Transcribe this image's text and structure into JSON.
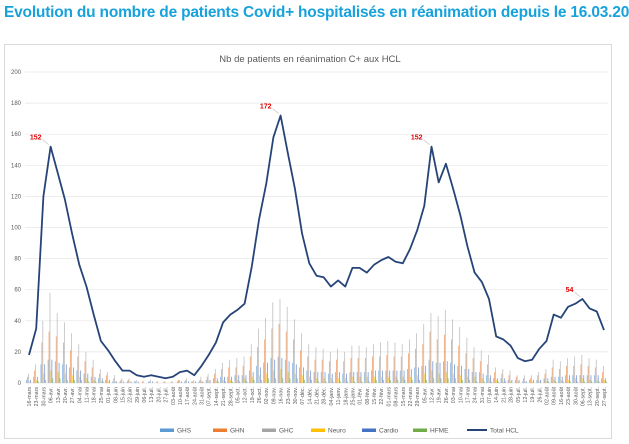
{
  "page_title": "Evolution du nombre de patients Covid+ hospitalisés en réanimation depuis le 16.03.20",
  "chart_data": {
    "type": "bar+line",
    "title": "Nb de patients en réanimation C+ aux HCL",
    "xlabel": "",
    "ylabel": "",
    "ylim": [
      0,
      200
    ],
    "yticks": [
      0,
      20,
      40,
      60,
      80,
      100,
      120,
      140,
      160,
      180,
      200
    ],
    "grid": true,
    "legend_position": "bottom",
    "categories": [
      "16-mars",
      "23-mars",
      "30-mars",
      "06-avr.",
      "13-avr.",
      "20-avr.",
      "27-avr.",
      "04-mai",
      "11-mai",
      "18-mai",
      "25-mai",
      "01-juin",
      "08-juin",
      "15-juin",
      "22-juin",
      "29-juin",
      "06-juil.",
      "13-juil.",
      "20-juil.",
      "27-juil.",
      "03-août",
      "10-août",
      "17-août",
      "24-août",
      "31-août",
      "07-sept.",
      "14-sept.",
      "21-sept.",
      "28-sept.",
      "05-oct.",
      "12-oct.",
      "19-oct.",
      "26-oct.",
      "02-nov.",
      "09-nov.",
      "16-nov.",
      "23-nov.",
      "30-nov.",
      "07-déc.",
      "14-déc.",
      "21-déc.",
      "28-déc.",
      "04-janv.",
      "11-janv.",
      "18-janv.",
      "25-janv.",
      "01-févr.",
      "08-févr.",
      "15-févr.",
      "22-févr.",
      "01-mars",
      "08-mars",
      "15-mars",
      "22-mars",
      "29-mars",
      "05-avr.",
      "12-avr.",
      "19-avr.",
      "26-avr.",
      "03-mai",
      "10-mai",
      "17-mai",
      "24-mai",
      "31-mai",
      "07-juin",
      "14-juin",
      "21-juin",
      "28-juin",
      "05-juil.",
      "12-juil.",
      "19-juil.",
      "26-juil.",
      "02-août",
      "09-août",
      "16-août",
      "23-août",
      "30-août",
      "06-sept.",
      "13-sept.",
      "20-sept.",
      "27-sept."
    ],
    "series": [
      {
        "name": "GHS",
        "type": "bar",
        "color": "#5b9bd5",
        "values": [
          2,
          4,
          12,
          15,
          14,
          12,
          10,
          8,
          6,
          4,
          3,
          2,
          1,
          1,
          1,
          1,
          0,
          1,
          0,
          0,
          0,
          1,
          1,
          1,
          1,
          2,
          3,
          4,
          4,
          5,
          5,
          8,
          11,
          13,
          16,
          17,
          15,
          13,
          10,
          8,
          7,
          7,
          6,
          7,
          6,
          7,
          7,
          7,
          8,
          8,
          8,
          8,
          8,
          9,
          10,
          11,
          15,
          13,
          14,
          13,
          11,
          9,
          7,
          7,
          5,
          3,
          3,
          2,
          2,
          1,
          2,
          2,
          3,
          4,
          4,
          5,
          5,
          5,
          5,
          5,
          3
        ]
      },
      {
        "name": "GHN",
        "type": "bar",
        "color": "#ed7d31",
        "values": [
          4,
          8,
          26,
          33,
          30,
          26,
          21,
          17,
          14,
          10,
          6,
          5,
          3,
          2,
          2,
          1,
          1,
          1,
          1,
          1,
          1,
          2,
          2,
          1,
          2,
          4,
          6,
          9,
          10,
          10,
          11,
          17,
          23,
          28,
          35,
          38,
          33,
          28,
          21,
          17,
          15,
          15,
          14,
          15,
          14,
          16,
          16,
          16,
          17,
          17,
          18,
          17,
          17,
          19,
          22,
          25,
          33,
          28,
          31,
          28,
          24,
          19,
          16,
          14,
          12,
          7,
          6,
          5,
          4,
          3,
          3,
          5,
          6,
          10,
          9,
          11,
          11,
          12,
          11,
          10,
          7
        ]
      },
      {
        "name": "GHC",
        "type": "bar",
        "color": "#a5a5a5",
        "values": [
          6,
          12,
          40,
          58,
          45,
          39,
          32,
          25,
          20,
          15,
          9,
          7,
          5,
          3,
          3,
          2,
          1,
          2,
          1,
          1,
          1,
          2,
          3,
          2,
          4,
          6,
          9,
          13,
          15,
          16,
          17,
          25,
          35,
          42,
          52,
          54,
          49,
          41,
          32,
          25,
          23,
          22,
          20,
          22,
          20,
          24,
          24,
          23,
          25,
          26,
          27,
          26,
          25,
          28,
          32,
          38,
          45,
          43,
          47,
          41,
          36,
          29,
          23,
          21,
          18,
          10,
          9,
          8,
          5,
          5,
          5,
          7,
          9,
          15,
          14,
          16,
          17,
          18,
          16,
          15,
          11
        ]
      },
      {
        "name": "Neuro",
        "type": "bar",
        "color": "#ffc000",
        "values": [
          1,
          2,
          6,
          8,
          7,
          6,
          5,
          4,
          3,
          2,
          1,
          1,
          1,
          0,
          0,
          0,
          0,
          0,
          0,
          0,
          0,
          0,
          0,
          0,
          1,
          1,
          1,
          2,
          2,
          2,
          3,
          4,
          5,
          6,
          8,
          9,
          7,
          6,
          5,
          4,
          3,
          3,
          3,
          3,
          3,
          4,
          4,
          4,
          4,
          4,
          4,
          4,
          4,
          4,
          5,
          6,
          8,
          6,
          7,
          6,
          5,
          4,
          4,
          3,
          3,
          2,
          1,
          1,
          1,
          1,
          1,
          1,
          1,
          2,
          2,
          2,
          3,
          3,
          2,
          2,
          2
        ]
      },
      {
        "name": "Cardio",
        "type": "bar",
        "color": "#4472c4",
        "values": [
          2,
          4,
          12,
          15,
          13,
          12,
          10,
          8,
          6,
          4,
          3,
          2,
          1,
          1,
          1,
          1,
          0,
          1,
          0,
          0,
          0,
          1,
          1,
          1,
          1,
          2,
          3,
          4,
          4,
          5,
          5,
          7,
          10,
          13,
          15,
          16,
          14,
          12,
          10,
          8,
          7,
          7,
          6,
          7,
          6,
          7,
          7,
          7,
          8,
          8,
          8,
          8,
          8,
          9,
          10,
          11,
          14,
          13,
          14,
          12,
          11,
          9,
          7,
          6,
          5,
          3,
          3,
          2,
          2,
          1,
          2,
          2,
          3,
          4,
          4,
          5,
          5,
          5,
          5,
          5,
          3
        ]
      },
      {
        "name": "HFME",
        "type": "bar",
        "color": "#70ad47",
        "values": [
          0,
          1,
          2,
          3,
          3,
          2,
          2,
          2,
          1,
          1,
          1,
          0,
          0,
          0,
          0,
          0,
          0,
          0,
          0,
          0,
          0,
          0,
          0,
          0,
          0,
          0,
          1,
          1,
          1,
          1,
          1,
          2,
          2,
          3,
          3,
          3,
          3,
          3,
          2,
          2,
          1,
          1,
          1,
          1,
          1,
          1,
          1,
          1,
          2,
          2,
          2,
          2,
          2,
          2,
          2,
          2,
          3,
          3,
          3,
          3,
          2,
          2,
          1,
          1,
          1,
          1,
          1,
          0,
          0,
          0,
          0,
          0,
          1,
          1,
          1,
          1,
          1,
          1,
          1,
          1,
          1
        ]
      },
      {
        "name": "Total HCL",
        "type": "line",
        "color": "#264478",
        "values": [
          18,
          35,
          120,
          152,
          135,
          118,
          96,
          76,
          62,
          44,
          27,
          21,
          14,
          8,
          8,
          5,
          4,
          5,
          4,
          3,
          4,
          7,
          8,
          5,
          11,
          18,
          26,
          39,
          44,
          47,
          51,
          75,
          105,
          128,
          158,
          172,
          148,
          125,
          96,
          77,
          69,
          68,
          62,
          66,
          62,
          74,
          74,
          71,
          76,
          79,
          81,
          78,
          77,
          86,
          98,
          114,
          152,
          129,
          141,
          125,
          108,
          88,
          71,
          65,
          54,
          30,
          28,
          24,
          16,
          14,
          15,
          22,
          27,
          44,
          42,
          49,
          51,
          54,
          48,
          46,
          34
        ]
      }
    ],
    "annotations": [
      {
        "text": "152",
        "index": 3
      },
      {
        "text": "172",
        "index": 35
      },
      {
        "text": "152",
        "index": 56
      },
      {
        "text": "54",
        "index": 77
      }
    ]
  }
}
